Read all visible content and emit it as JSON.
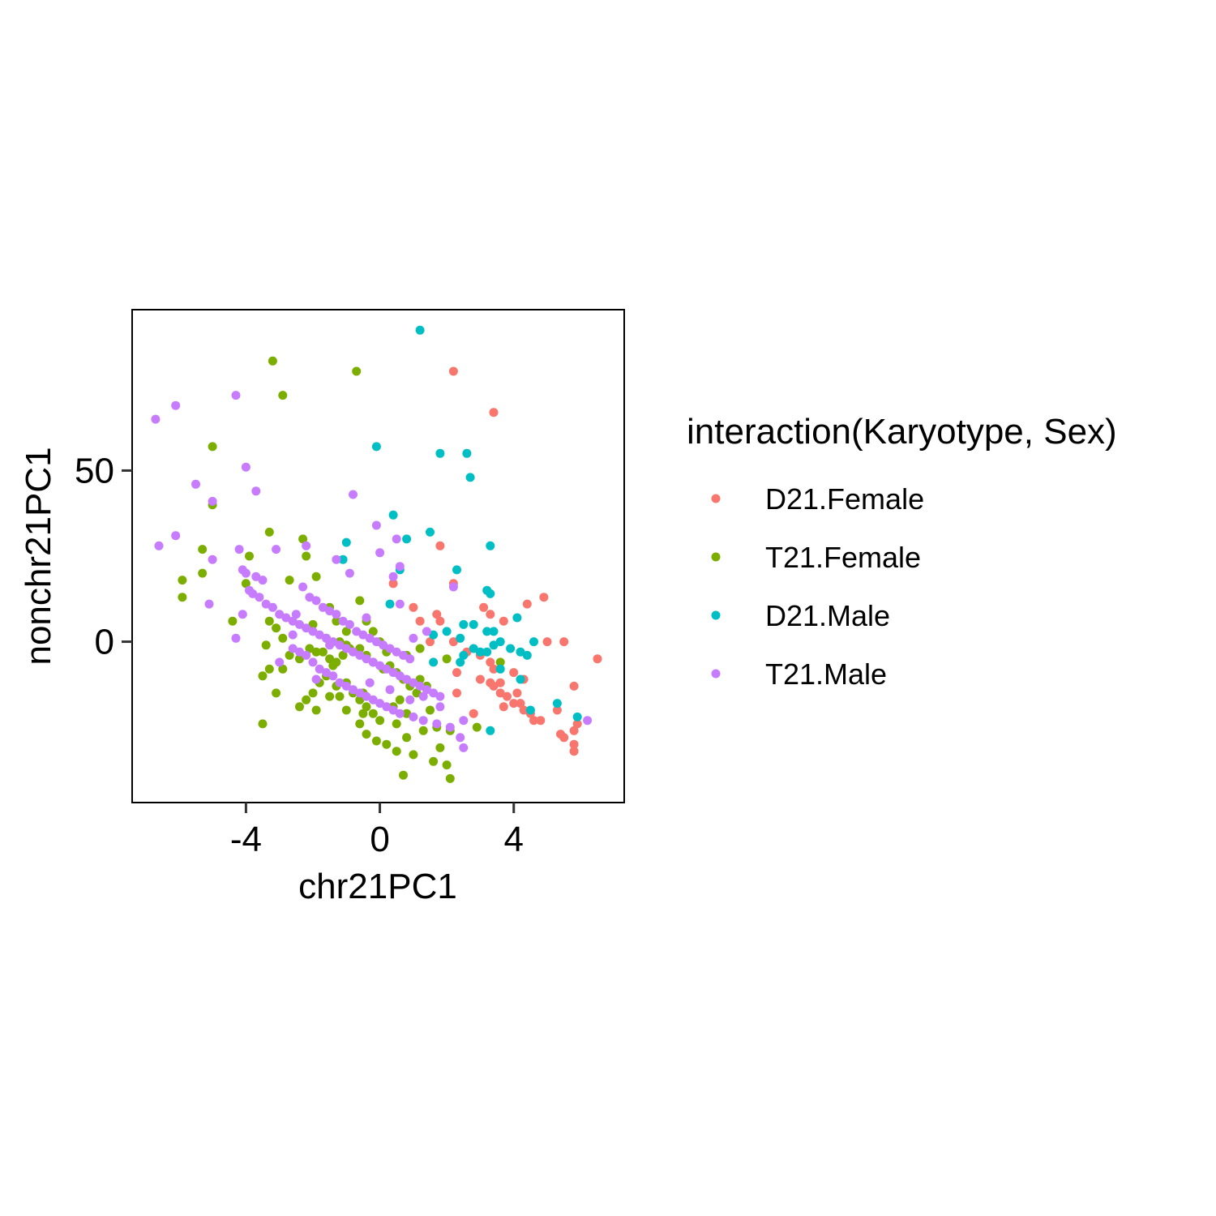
{
  "chart_data": {
    "type": "scatter",
    "xlabel": "chr21PC1",
    "ylabel": "nonchr21PC1",
    "xlim": [
      -7.4,
      7.3
    ],
    "ylim": [
      -47,
      97
    ],
    "x_ticks": [
      -4,
      0,
      4
    ],
    "y_ticks": [
      0,
      50
    ],
    "x_tick_labels": [
      "-4",
      "0",
      "4"
    ],
    "y_tick_labels": [
      "0",
      "50"
    ],
    "grid": false,
    "legend": {
      "title": "interaction(Karyotype, Sex)",
      "placement": "right"
    },
    "series": [
      {
        "name": "D21.Female",
        "color": "#F8766D",
        "points": [
          [
            2.2,
            79
          ],
          [
            3.4,
            67
          ],
          [
            1.8,
            28
          ],
          [
            2.2,
            17
          ],
          [
            0.4,
            17
          ],
          [
            1.0,
            10
          ],
          [
            1.7,
            8
          ],
          [
            1.8,
            6
          ],
          [
            1.2,
            6
          ],
          [
            3.1,
            10
          ],
          [
            3.3,
            8
          ],
          [
            3.7,
            6
          ],
          [
            4.4,
            11
          ],
          [
            4.9,
            13
          ],
          [
            5.0,
            0
          ],
          [
            5.5,
            0
          ],
          [
            6.5,
            -5
          ],
          [
            2.2,
            0
          ],
          [
            2.6,
            -3
          ],
          [
            3.0,
            -4
          ],
          [
            3.3,
            -6
          ],
          [
            3.4,
            -8
          ],
          [
            2.3,
            -9
          ],
          [
            3.0,
            -11
          ],
          [
            3.3,
            -12
          ],
          [
            3.6,
            -12
          ],
          [
            4.0,
            -9
          ],
          [
            4.3,
            -11
          ],
          [
            3.4,
            -13
          ],
          [
            3.6,
            -15
          ],
          [
            3.8,
            -16
          ],
          [
            4.1,
            -15
          ],
          [
            4.2,
            -18
          ],
          [
            4.0,
            -18
          ],
          [
            3.7,
            -19
          ],
          [
            4.3,
            -20
          ],
          [
            4.5,
            -21
          ],
          [
            2.8,
            -21
          ],
          [
            4.6,
            -23
          ],
          [
            4.8,
            -23
          ],
          [
            5.3,
            -20
          ],
          [
            5.5,
            -28
          ],
          [
            5.4,
            -27
          ],
          [
            5.8,
            -26
          ],
          [
            5.9,
            -24
          ],
          [
            5.8,
            -30
          ],
          [
            5.8,
            -32
          ],
          [
            5.8,
            -13
          ],
          [
            2.3,
            -15
          ],
          [
            1.5,
            0
          ]
        ]
      },
      {
        "name": "T21.Female",
        "color": "#7CAE00",
        "points": [
          [
            -3.2,
            82
          ],
          [
            -0.7,
            79
          ],
          [
            -2.9,
            72
          ],
          [
            -5.0,
            57
          ],
          [
            -5.0,
            40
          ],
          [
            -5.9,
            18
          ],
          [
            -5.9,
            13
          ],
          [
            -5.3,
            20
          ],
          [
            -5.3,
            27
          ],
          [
            -4.4,
            6
          ],
          [
            -4.0,
            17
          ],
          [
            -3.3,
            32
          ],
          [
            -3.9,
            25
          ],
          [
            -2.3,
            30
          ],
          [
            -2.2,
            25
          ],
          [
            -2.7,
            18
          ],
          [
            -1.9,
            19
          ],
          [
            -1.5,
            10
          ],
          [
            -2.0,
            5
          ],
          [
            -1.3,
            6
          ],
          [
            -3.3,
            6
          ],
          [
            -3.1,
            4
          ],
          [
            -2.9,
            1
          ],
          [
            -3.4,
            -1
          ],
          [
            -2.7,
            -4
          ],
          [
            -2.4,
            -5
          ],
          [
            -2.1,
            -2
          ],
          [
            -1.9,
            -3
          ],
          [
            -1.7,
            -3
          ],
          [
            -1.5,
            -5
          ],
          [
            -1.3,
            -6
          ],
          [
            -1.1,
            -4
          ],
          [
            -0.9,
            -2
          ],
          [
            -0.6,
            -2
          ],
          [
            -0.4,
            -4
          ],
          [
            -0.2,
            -6
          ],
          [
            0.1,
            -8
          ],
          [
            0.3,
            -7
          ],
          [
            0.5,
            -9
          ],
          [
            0.7,
            -11
          ],
          [
            0.9,
            -13
          ],
          [
            1.1,
            -15
          ],
          [
            -0.6,
            12
          ],
          [
            -0.4,
            6
          ],
          [
            -0.2,
            3
          ],
          [
            0.0,
            0
          ],
          [
            0.2,
            -3
          ],
          [
            -1.0,
            3
          ],
          [
            -1.2,
            0
          ],
          [
            -1.4,
            -7
          ],
          [
            -1.6,
            -10
          ],
          [
            -1.8,
            -12
          ],
          [
            -2.0,
            -15
          ],
          [
            -2.2,
            -17
          ],
          [
            -2.4,
            -19
          ],
          [
            -1.0,
            -12
          ],
          [
            -0.8,
            -15
          ],
          [
            -0.6,
            -17
          ],
          [
            -0.4,
            -19
          ],
          [
            -0.2,
            -21
          ],
          [
            0.0,
            -23
          ],
          [
            -1.2,
            -16
          ],
          [
            -1.0,
            -20
          ],
          [
            -0.6,
            -24
          ],
          [
            -0.4,
            -27
          ],
          [
            -0.1,
            -29
          ],
          [
            0.2,
            -30
          ],
          [
            0.5,
            -24
          ],
          [
            0.8,
            -28
          ],
          [
            1.0,
            -33
          ],
          [
            1.3,
            -26
          ],
          [
            1.5,
            -20
          ],
          [
            1.7,
            -25
          ],
          [
            1.8,
            -31
          ],
          [
            2.0,
            -36
          ],
          [
            2.1,
            -40
          ],
          [
            -3.5,
            -24
          ],
          [
            -3.1,
            -15
          ],
          [
            -3.5,
            -10
          ],
          [
            -2.9,
            -8
          ],
          [
            -3.3,
            -8
          ],
          [
            -1.9,
            -20
          ],
          [
            -1.5,
            -16
          ],
          [
            -1.3,
            -13
          ],
          [
            -0.5,
            -15
          ],
          [
            0.4,
            -19
          ],
          [
            1.2,
            -11
          ],
          [
            1.4,
            -13
          ],
          [
            0.6,
            -17
          ],
          [
            0.8,
            -21
          ],
          [
            -1.6,
            1
          ],
          [
            -1.0,
            -1
          ],
          [
            0.8,
            -4
          ],
          [
            1.2,
            -2
          ],
          [
            2.0,
            -5
          ],
          [
            2.1,
            -26
          ],
          [
            2.9,
            -25
          ],
          [
            3.6,
            -6
          ],
          [
            1.6,
            -35
          ],
          [
            0.7,
            -39
          ],
          [
            0.5,
            -32
          ],
          [
            -0.5,
            -21
          ]
        ]
      },
      {
        "name": "D21.Male",
        "color": "#00BFC4",
        "points": [
          [
            1.2,
            91
          ],
          [
            -0.1,
            57
          ],
          [
            1.8,
            55
          ],
          [
            2.6,
            55
          ],
          [
            2.7,
            48
          ],
          [
            0.4,
            37
          ],
          [
            1.5,
            32
          ],
          [
            -1.0,
            29
          ],
          [
            0.8,
            30
          ],
          [
            3.3,
            28
          ],
          [
            2.3,
            21
          ],
          [
            0.6,
            21
          ],
          [
            -1.1,
            24
          ],
          [
            3.2,
            15
          ],
          [
            3.3,
            14
          ],
          [
            0.3,
            11
          ],
          [
            2.5,
            5
          ],
          [
            2.8,
            5
          ],
          [
            4.1,
            7
          ],
          [
            1.6,
            2
          ],
          [
            2.0,
            3
          ],
          [
            2.4,
            1
          ],
          [
            3.2,
            3
          ],
          [
            3.4,
            3
          ],
          [
            3.6,
            0
          ],
          [
            2.8,
            -2
          ],
          [
            3.0,
            -3
          ],
          [
            3.2,
            -3
          ],
          [
            2.5,
            -4
          ],
          [
            1.6,
            -6
          ],
          [
            3.9,
            -2
          ],
          [
            4.2,
            -3
          ],
          [
            4.4,
            -4
          ],
          [
            4.6,
            0
          ],
          [
            3.6,
            -8
          ],
          [
            4.2,
            -11
          ],
          [
            5.3,
            -18
          ],
          [
            4.5,
            -20
          ],
          [
            5.9,
            -22
          ],
          [
            3.3,
            -26
          ],
          [
            2.4,
            -6
          ],
          [
            3.4,
            -1
          ]
        ]
      },
      {
        "name": "T21.Male",
        "color": "#C77CFF",
        "points": [
          [
            -6.7,
            65
          ],
          [
            -6.1,
            69
          ],
          [
            -4.3,
            72
          ],
          [
            -4.0,
            51
          ],
          [
            -5.5,
            46
          ],
          [
            -5.0,
            41
          ],
          [
            -3.7,
            44
          ],
          [
            -0.8,
            43
          ],
          [
            -6.6,
            28
          ],
          [
            -6.1,
            31
          ],
          [
            -5.1,
            11
          ],
          [
            -5.0,
            24
          ],
          [
            -4.2,
            27
          ],
          [
            -3.1,
            27
          ],
          [
            -2.2,
            28
          ],
          [
            -1.3,
            24
          ],
          [
            -0.9,
            20
          ],
          [
            -0.1,
            34
          ],
          [
            0.0,
            26
          ],
          [
            0.5,
            30
          ],
          [
            0.6,
            22
          ],
          [
            0.4,
            19
          ],
          [
            0.6,
            11
          ],
          [
            -4.1,
            21
          ],
          [
            -4.0,
            20
          ],
          [
            -3.7,
            19
          ],
          [
            -3.5,
            18
          ],
          [
            -3.9,
            15
          ],
          [
            -3.8,
            14
          ],
          [
            -3.6,
            13
          ],
          [
            -3.4,
            11
          ],
          [
            -3.2,
            10
          ],
          [
            -3.0,
            8
          ],
          [
            -2.8,
            7
          ],
          [
            -2.6,
            6
          ],
          [
            -2.4,
            5
          ],
          [
            -2.2,
            4
          ],
          [
            -2.0,
            3
          ],
          [
            -1.8,
            2
          ],
          [
            -1.6,
            1
          ],
          [
            -1.4,
            0
          ],
          [
            -1.2,
            -1
          ],
          [
            -1.0,
            -2
          ],
          [
            -0.8,
            -3
          ],
          [
            -0.6,
            -4
          ],
          [
            -0.4,
            -5
          ],
          [
            -0.2,
            -6
          ],
          [
            0.0,
            -7
          ],
          [
            0.2,
            -8
          ],
          [
            0.4,
            -9
          ],
          [
            0.6,
            -10
          ],
          [
            0.8,
            -11
          ],
          [
            1.0,
            -12
          ],
          [
            1.2,
            -13
          ],
          [
            1.4,
            -14
          ],
          [
            1.6,
            -15
          ],
          [
            1.8,
            -16
          ],
          [
            -2.3,
            16
          ],
          [
            -2.1,
            13
          ],
          [
            -1.9,
            12
          ],
          [
            -1.7,
            10
          ],
          [
            -1.5,
            9
          ],
          [
            -1.3,
            8
          ],
          [
            -1.1,
            6
          ],
          [
            -0.9,
            5
          ],
          [
            -0.7,
            3
          ],
          [
            -0.5,
            2
          ],
          [
            -0.3,
            1
          ],
          [
            -0.1,
            0
          ],
          [
            0.1,
            -1
          ],
          [
            0.3,
            -2
          ],
          [
            0.5,
            -3
          ],
          [
            0.7,
            -4
          ],
          [
            0.9,
            -5
          ],
          [
            -2.6,
            -2
          ],
          [
            -2.4,
            -3
          ],
          [
            -2.2,
            -4
          ],
          [
            -2.0,
            -6
          ],
          [
            -1.8,
            -8
          ],
          [
            -1.6,
            -9
          ],
          [
            -1.4,
            -10
          ],
          [
            -1.2,
            -12
          ],
          [
            -1.0,
            -13
          ],
          [
            -0.8,
            -14
          ],
          [
            -0.6,
            -15
          ],
          [
            -0.4,
            -16
          ],
          [
            -0.2,
            -17
          ],
          [
            0.0,
            -18
          ],
          [
            0.2,
            -19
          ],
          [
            0.4,
            -20
          ],
          [
            0.6,
            -21
          ],
          [
            1.0,
            -22
          ],
          [
            1.3,
            -23
          ],
          [
            1.7,
            -24
          ],
          [
            2.1,
            -25
          ],
          [
            2.4,
            -28
          ],
          [
            2.5,
            -31
          ],
          [
            2.5,
            -23
          ],
          [
            -1.9,
            -11
          ],
          [
            -3.0,
            -6
          ],
          [
            -4.1,
            8
          ],
          [
            -4.3,
            1
          ],
          [
            -1.5,
            -1
          ],
          [
            -0.3,
            -12
          ],
          [
            0.3,
            -14
          ],
          [
            0.9,
            -17
          ],
          [
            1.3,
            -16
          ],
          [
            1.8,
            -19
          ],
          [
            1.0,
            1
          ],
          [
            1.4,
            3
          ],
          [
            2.2,
            16
          ],
          [
            -2.5,
            8
          ],
          [
            -0.4,
            7
          ],
          [
            6.2,
            -23
          ],
          [
            -2.6,
            2
          ]
        ]
      }
    ]
  }
}
